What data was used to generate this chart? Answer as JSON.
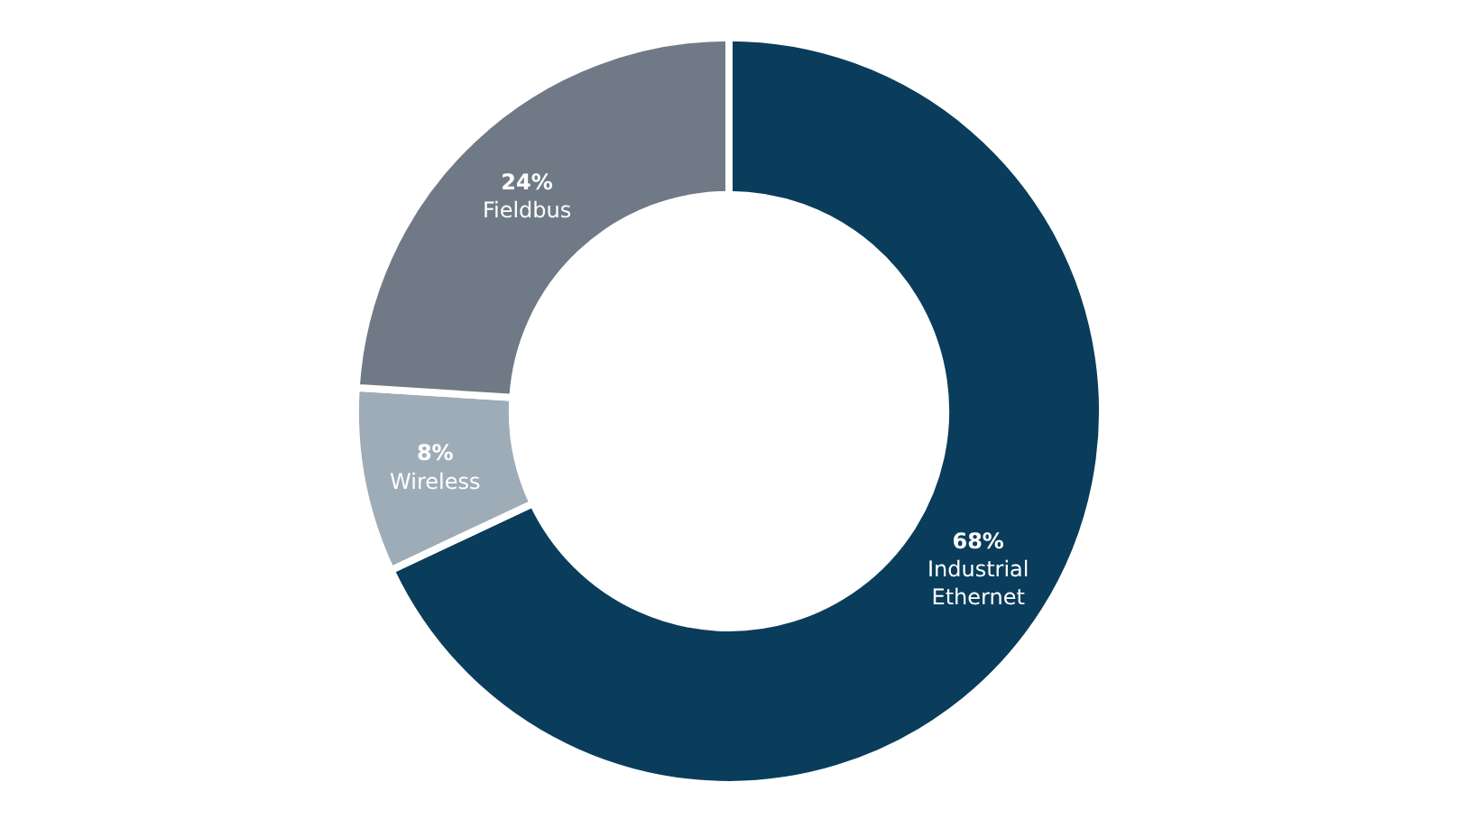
{
  "chart_data": {
    "type": "donut",
    "categories": [
      "Industrial Ethernet",
      "Wireless",
      "Fieldbus"
    ],
    "values": [
      68,
      8,
      24
    ],
    "value_labels": [
      "68%",
      "8%",
      "24%"
    ],
    "colors": [
      "#0a3d5c",
      "#9eacb8",
      "#707a86"
    ]
  }
}
